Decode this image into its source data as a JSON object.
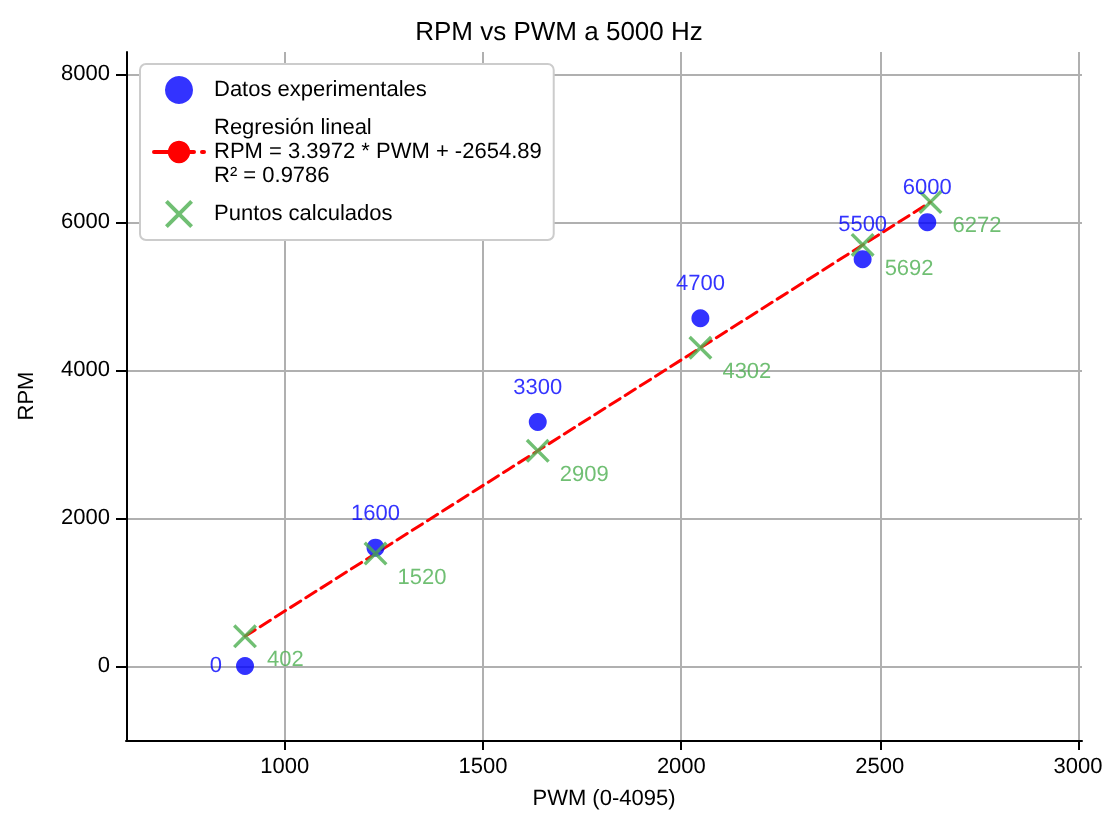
{
  "chart_data": {
    "type": "scatter",
    "title": "RPM vs PWM a 5000 Hz",
    "xlabel": "PWM (0-4095)",
    "ylabel": "RPM",
    "xlim": [
      600,
      3010
    ],
    "xticks": [
      1000,
      1500,
      2000,
      2500,
      3000
    ],
    "ylim": [
      -1000,
      8300
    ],
    "yticks": [
      0,
      2000,
      4000,
      6000,
      8000
    ],
    "grid": true,
    "legend": "top left",
    "series": [
      {
        "name": "Datos experimentales",
        "type": "scatter",
        "marker": "circle",
        "color": "#0000ff",
        "x": [
          900,
          1229,
          1638,
          2048,
          2457,
          2620
        ],
        "values": [
          0,
          1600,
          3300,
          4700,
          5500,
          6000
        ],
        "value_labels": [
          "0",
          "1600",
          "3300",
          "4700",
          "5500",
          "6000"
        ]
      },
      {
        "name": "Regresión lineal\nRPM = 3.3972 * PWM + -2654.89\nR² = 0.9786",
        "type": "line",
        "marker": "none",
        "line_style": "dashed",
        "color": "#ff0000",
        "x": [
          900,
          2628
        ],
        "values": [
          402,
          6272
        ]
      },
      {
        "name": "Puntos calculados",
        "type": "scatter",
        "marker": "cross",
        "color": "#4caf50",
        "x": [
          900,
          1229,
          1638,
          2048,
          2457,
          2628
        ],
        "values": [
          402,
          1520,
          2909,
          4302,
          5692,
          6272
        ],
        "value_labels": [
          "402",
          "1520",
          "2909",
          "4302",
          "5692",
          "6272"
        ]
      }
    ]
  }
}
